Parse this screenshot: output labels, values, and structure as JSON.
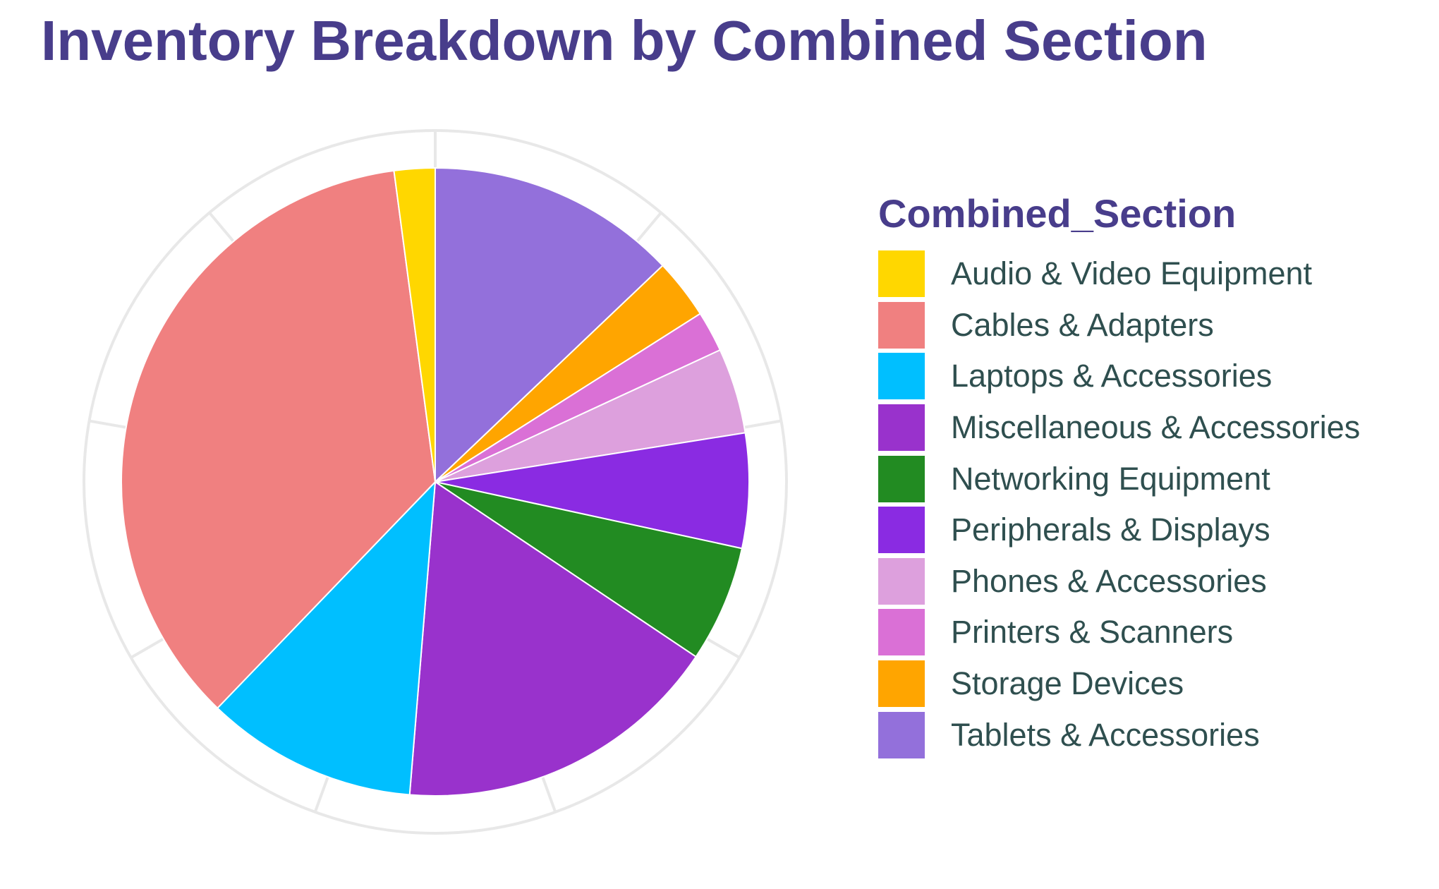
{
  "chart_data": {
    "type": "pie",
    "title": "Inventory Breakdown by Combined Section",
    "legend_title": "Combined_Section",
    "legend_position": "right",
    "grid": true,
    "start_angle_deg": 0,
    "direction": "clockwise",
    "categories": [
      "Audio & Video Equipment",
      "Cables & Adapters",
      "Laptops & Accessories",
      "Miscellaneous & Accessories",
      "Networking Equipment",
      "Peripherals & Displays",
      "Phones & Accessories",
      "Printers & Scanners",
      "Storage Devices",
      "Tablets & Accessories"
    ],
    "values": [
      2.1,
      35.7,
      10.9,
      16.9,
      6.0,
      5.9,
      4.4,
      2.1,
      3.1,
      12.9
    ],
    "slice_order": [
      "Tablets & Accessories",
      "Storage Devices",
      "Printers & Scanners",
      "Phones & Accessories",
      "Peripherals & Displays",
      "Networking Equipment",
      "Miscellaneous & Accessories",
      "Laptops & Accessories",
      "Cables & Adapters",
      "Audio & Video Equipment"
    ],
    "colors": {
      "Audio & Video Equipment": "#FFD700",
      "Cables & Adapters": "#F08080",
      "Laptops & Accessories": "#00BFFF",
      "Miscellaneous & Accessories": "#9932CC",
      "Networking Equipment": "#228B22",
      "Peripherals & Displays": "#8A2BE2",
      "Phones & Accessories": "#DDA0DD",
      "Printers & Scanners": "#DA70D6",
      "Storage Devices": "#FFA500",
      "Tablets & Accessories": "#9370DB"
    }
  },
  "theme": {
    "title_color": "#483D8B",
    "legend_text_color": "#2F4F4F",
    "grid_color": "#E8E8E8"
  }
}
